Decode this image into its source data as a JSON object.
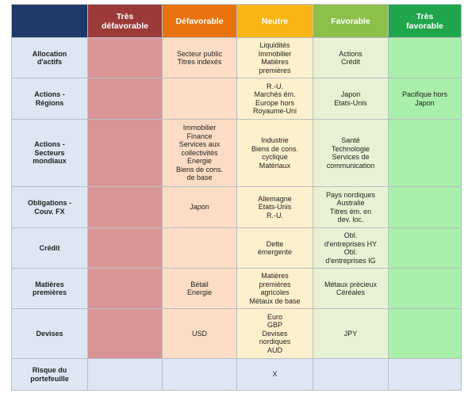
{
  "header": {
    "columns": [
      "Très\ndéfavorable",
      "Défavorable",
      "Neutre",
      "Favorable",
      "Très\nfavorable"
    ]
  },
  "rows": [
    {
      "label": "Allocation\nd'actifs",
      "cells": [
        "",
        "Secteur public\nTitres indexés",
        "Liquidités\nImmobilier\nMatières\npremières",
        "Actions\nCrédit",
        ""
      ]
    },
    {
      "label": "Actions -\nRégions",
      "cells": [
        "",
        "",
        "R.-U.\nMarchés ém.\nEurope hors\nRoyaume-Uni",
        "Japon\nEtats-Unis",
        "Pacifique hors\nJapon"
      ]
    },
    {
      "label": "Actions -\nSecteurs\nmondiaux",
      "cells": [
        "",
        "Immobilier\nFinance\nServices aux\ncollectivités\nEnergie\nBiens de cons.\nde base",
        "Industrie\nBiens de cons.\ncyclique\nMatériaux",
        "Santé\nTechnologie\nServices de\ncommunication",
        ""
      ]
    },
    {
      "label": "Obligations -\nCouv. FX",
      "cells": [
        "",
        "Japon",
        "Allemagne\nEtats-Unis\nR.-U.",
        "Pays nordiques\nAustralie\nTitres ém. en\ndev. loc.",
        ""
      ]
    },
    {
      "label": "Crédit",
      "cells": [
        "",
        "",
        "Dette\némergente",
        "Obl.\nd'entreprises HY\nObl.\nd'entreprises IG",
        ""
      ]
    },
    {
      "label": "Matières\npremières",
      "cells": [
        "",
        "Bétail\nEnergie",
        "Matières\npremières\nagricoles\nMétaux de base",
        "Métaux précieux\nCéréales",
        ""
      ]
    },
    {
      "label": "Devises",
      "cells": [
        "",
        "USD",
        "Euro\nGBP\nDevises\nnordiques\nAUD",
        "JPY",
        ""
      ]
    },
    {
      "label": "Risque du\nportefeuille",
      "cells": [
        "",
        "",
        "X",
        "",
        ""
      ]
    }
  ]
}
